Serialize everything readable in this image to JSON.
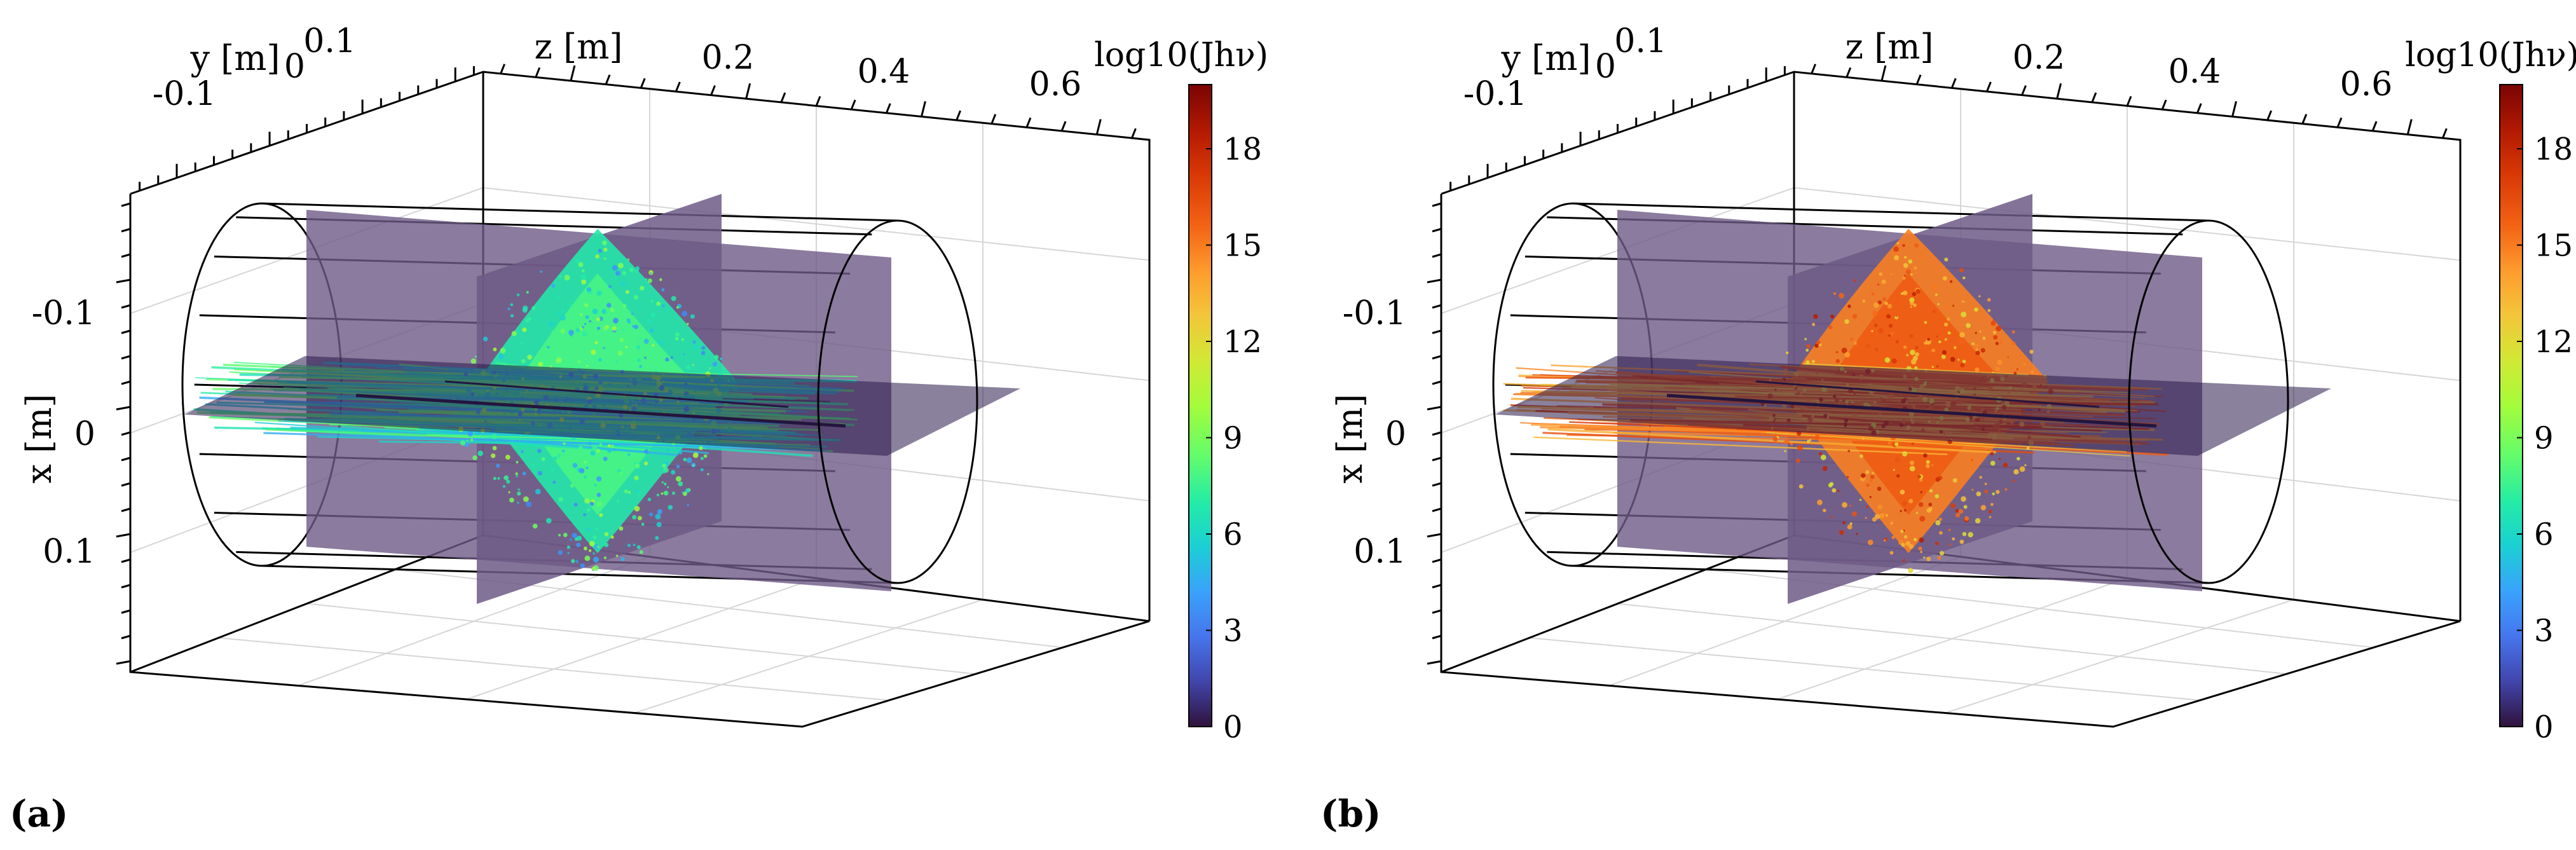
{
  "chart_data": [
    {
      "type": "heatmap",
      "panel_label": "(a)",
      "x_axis": {
        "label": "x [m]",
        "ticks": [
          "-0.1",
          "0",
          "0.1"
        ]
      },
      "y_axis": {
        "label": "y [m]",
        "ticks": [
          "-0.1",
          "0",
          "0.1"
        ]
      },
      "z_axis": {
        "label": "z [m]",
        "ticks": [
          "0.2",
          "0.4",
          "0.6"
        ]
      },
      "colorbar": {
        "label": "log10(Jhν)",
        "ticks": [
          "0",
          "3",
          "6",
          "9",
          "12",
          "15",
          "18"
        ],
        "range": [
          0,
          20
        ]
      },
      "grid": true,
      "dominant_level": 7
    },
    {
      "type": "heatmap",
      "panel_label": "(b)",
      "x_axis": {
        "label": "x [m]",
        "ticks": [
          "-0.1",
          "0",
          "0.1"
        ]
      },
      "y_axis": {
        "label": "y [m]",
        "ticks": [
          "-0.1",
          "0",
          "0.1"
        ]
      },
      "z_axis": {
        "label": "z [m]",
        "ticks": [
          "0.2",
          "0.4",
          "0.6"
        ]
      },
      "colorbar": {
        "label": "log10(Jhν)",
        "ticks": [
          "0",
          "3",
          "6",
          "9",
          "12",
          "15",
          "18"
        ],
        "range": [
          0,
          20
        ]
      },
      "grid": true,
      "dominant_level": 15
    }
  ],
  "colors": {
    "background_plane": "#2a1a4a",
    "vertical_plane": "#6e5a86",
    "colormap": [
      "#30123b",
      "#4145ab",
      "#4675ed",
      "#39a2fc",
      "#1bcfd4",
      "#24eca6",
      "#61fc6c",
      "#a4fc3b",
      "#d1e834",
      "#f3c63a",
      "#fe9b2d",
      "#f36315",
      "#d93806",
      "#b11901",
      "#7a0403"
    ]
  }
}
